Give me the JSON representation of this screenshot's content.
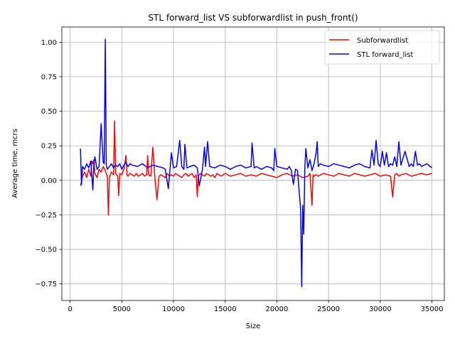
{
  "chart_data": {
    "type": "line",
    "title": "STL forward_list VS subforwardlist in push_front()",
    "xlabel": "Size",
    "ylabel": "Average time, mcrs",
    "xlim": [
      -800,
      36200
    ],
    "ylim": [
      -0.87,
      1.11
    ],
    "xticks": [
      0,
      5000,
      10000,
      15000,
      20000,
      25000,
      30000,
      35000
    ],
    "yticks": [
      -0.75,
      -0.5,
      -0.25,
      0.0,
      0.25,
      0.5,
      0.75,
      1.0
    ],
    "xtick_labels": [
      "0",
      "5000",
      "10000",
      "15000",
      "20000",
      "25000",
      "30000",
      "35000"
    ],
    "ytick_labels": [
      "−0.75",
      "−0.50",
      "−0.25",
      "0.00",
      "0.25",
      "0.50",
      "0.75",
      "1.00"
    ],
    "grid": true,
    "legend_position": "top-right",
    "series": [
      {
        "name": "Subforwardlist",
        "color": "#ff0000",
        "x": [
          1000,
          1200,
          1400,
          1600,
          1800,
          2000,
          2100,
          2200,
          2300,
          2400,
          2600,
          2800,
          3000,
          3200,
          3400,
          3600,
          3700,
          3800,
          4000,
          4200,
          4300,
          4400,
          4600,
          4700,
          4800,
          5000,
          5200,
          5400,
          5500,
          5600,
          5800,
          6000,
          6200,
          6400,
          6600,
          6800,
          7000,
          7200,
          7400,
          7500,
          7600,
          7800,
          8000,
          8200,
          8400,
          8600,
          8800,
          9000,
          9200,
          9400,
          9600,
          9800,
          10000,
          10200,
          10400,
          10600,
          10800,
          11000,
          11200,
          11400,
          11600,
          11800,
          12000,
          12200,
          12300,
          12400,
          12600,
          12800,
          13000,
          13200,
          13400,
          13600,
          13800,
          14000,
          14200,
          14400,
          14600,
          14800,
          15000,
          15500,
          16000,
          16500,
          17000,
          17500,
          18000,
          18500,
          19000,
          19500,
          20000,
          20500,
          21000,
          21500,
          22000,
          22500,
          23000,
          23200,
          23400,
          23500,
          23600,
          23800,
          24000,
          24500,
          25000,
          25500,
          26000,
          26500,
          27000,
          27500,
          28000,
          28500,
          29000,
          29500,
          30000,
          30500,
          31000,
          31200,
          31400,
          31600,
          31800,
          32000,
          32500,
          33000,
          33500,
          34000,
          34500,
          35000
        ],
        "y": [
          -0.04,
          0.03,
          0.06,
          0.02,
          0.08,
          0.03,
          0.14,
          0.12,
          0.15,
          0.05,
          0.02,
          0.08,
          0.06,
          0.1,
          0.07,
          0.03,
          -0.25,
          0.02,
          0.06,
          0.04,
          0.43,
          0.05,
          0.03,
          -0.11,
          0.05,
          0.04,
          0.08,
          0.18,
          0.04,
          0.03,
          0.05,
          0.04,
          0.03,
          0.05,
          0.03,
          0.04,
          0.05,
          0.03,
          0.04,
          0.18,
          0.04,
          0.03,
          0.24,
          0.02,
          -0.14,
          0.03,
          0.04,
          0.03,
          0.02,
          0.05,
          0.03,
          0.04,
          0.03,
          0.05,
          0.04,
          0.03,
          0.02,
          0.04,
          0.05,
          0.03,
          0.04,
          0.05,
          0.02,
          0.04,
          -0.12,
          0.03,
          0.05,
          0.04,
          0.03,
          0.05,
          0.04,
          0.03,
          0.04,
          0.02,
          0.05,
          0.04,
          0.03,
          0.04,
          0.05,
          0.03,
          0.04,
          0.05,
          0.03,
          0.04,
          0.03,
          0.05,
          0.04,
          0.03,
          0.02,
          0.04,
          0.05,
          0.03,
          0.04,
          0.02,
          0.03,
          0.05,
          -0.18,
          0.04,
          0.03,
          0.04,
          0.03,
          0.05,
          0.04,
          0.03,
          0.05,
          0.04,
          0.03,
          0.05,
          0.04,
          0.03,
          0.04,
          0.05,
          0.03,
          0.04,
          0.03,
          -0.12,
          0.04,
          0.05,
          0.03,
          0.04,
          0.05,
          0.03,
          0.04,
          0.05,
          0.04,
          0.05
        ]
      },
      {
        "name": "STL forward_list",
        "color": "#0000ff",
        "x": [
          1000,
          1100,
          1200,
          1400,
          1600,
          1800,
          2000,
          2200,
          2300,
          2400,
          2600,
          2800,
          3000,
          3200,
          3300,
          3400,
          3500,
          3600,
          3800,
          4000,
          4200,
          4400,
          4600,
          4800,
          5000,
          5200,
          5400,
          5600,
          5800,
          6000,
          6500,
          7000,
          7500,
          8000,
          8500,
          9000,
          9200,
          9500,
          9800,
          10000,
          10300,
          10600,
          10800,
          11000,
          11100,
          11300,
          11600,
          12000,
          12300,
          12500,
          12800,
          13000,
          13100,
          13300,
          13500,
          14000,
          14500,
          15000,
          15500,
          16000,
          16500,
          17000,
          17500,
          17600,
          17800,
          18000,
          18500,
          19000,
          19500,
          19700,
          19800,
          20000,
          20500,
          21000,
          21200,
          21400,
          21600,
          21800,
          22000,
          22200,
          22300,
          22400,
          22500,
          22600,
          22700,
          22800,
          23000,
          23200,
          23400,
          23600,
          23800,
          23900,
          24000,
          24200,
          24500,
          25000,
          25500,
          26000,
          26500,
          27000,
          27500,
          28000,
          28500,
          29000,
          29200,
          29400,
          29600,
          29800,
          30000,
          30200,
          30400,
          30600,
          30800,
          31000,
          31200,
          31400,
          31600,
          31800,
          32000,
          32400,
          32800,
          33000,
          33200,
          33400,
          33600,
          33800,
          34000,
          34500,
          35000
        ],
        "y": [
          0.23,
          -0.03,
          0.1,
          0.08,
          0.12,
          0.09,
          0.14,
          -0.07,
          0.12,
          0.17,
          0.08,
          0.1,
          0.41,
          0.13,
          0.12,
          1.02,
          0.11,
          0.08,
          0.1,
          0.12,
          0.09,
          0.11,
          0.1,
          0.12,
          0.08,
          0.11,
          0.13,
          0.1,
          0.12,
          0.11,
          0.1,
          0.12,
          0.09,
          0.11,
          0.1,
          0.09,
          0.08,
          -0.06,
          0.2,
          0.09,
          0.1,
          0.29,
          0.1,
          0.08,
          0.26,
          0.09,
          0.1,
          0.11,
          0.09,
          -0.04,
          0.08,
          0.24,
          0.1,
          0.28,
          0.1,
          0.09,
          0.11,
          0.1,
          0.08,
          0.1,
          0.11,
          0.09,
          0.1,
          0.27,
          0.09,
          0.1,
          0.08,
          0.1,
          0.09,
          0.07,
          0.23,
          0.1,
          0.09,
          0.08,
          0.1,
          0.07,
          -0.03,
          0.08,
          0.07,
          -0.12,
          -0.21,
          -0.77,
          -0.18,
          -0.39,
          0.08,
          0.23,
          0.09,
          0.15,
          0.07,
          0.12,
          0.2,
          0.28,
          0.1,
          0.12,
          0.11,
          0.1,
          0.12,
          0.11,
          0.1,
          0.09,
          0.11,
          0.12,
          0.1,
          0.09,
          0.22,
          0.11,
          0.29,
          0.12,
          0.1,
          0.21,
          0.11,
          0.2,
          0.1,
          0.12,
          0.11,
          0.17,
          0.1,
          0.28,
          0.11,
          0.21,
          0.1,
          0.12,
          0.1,
          0.21,
          0.11,
          0.12,
          0.1,
          0.12,
          0.09
        ]
      }
    ]
  }
}
